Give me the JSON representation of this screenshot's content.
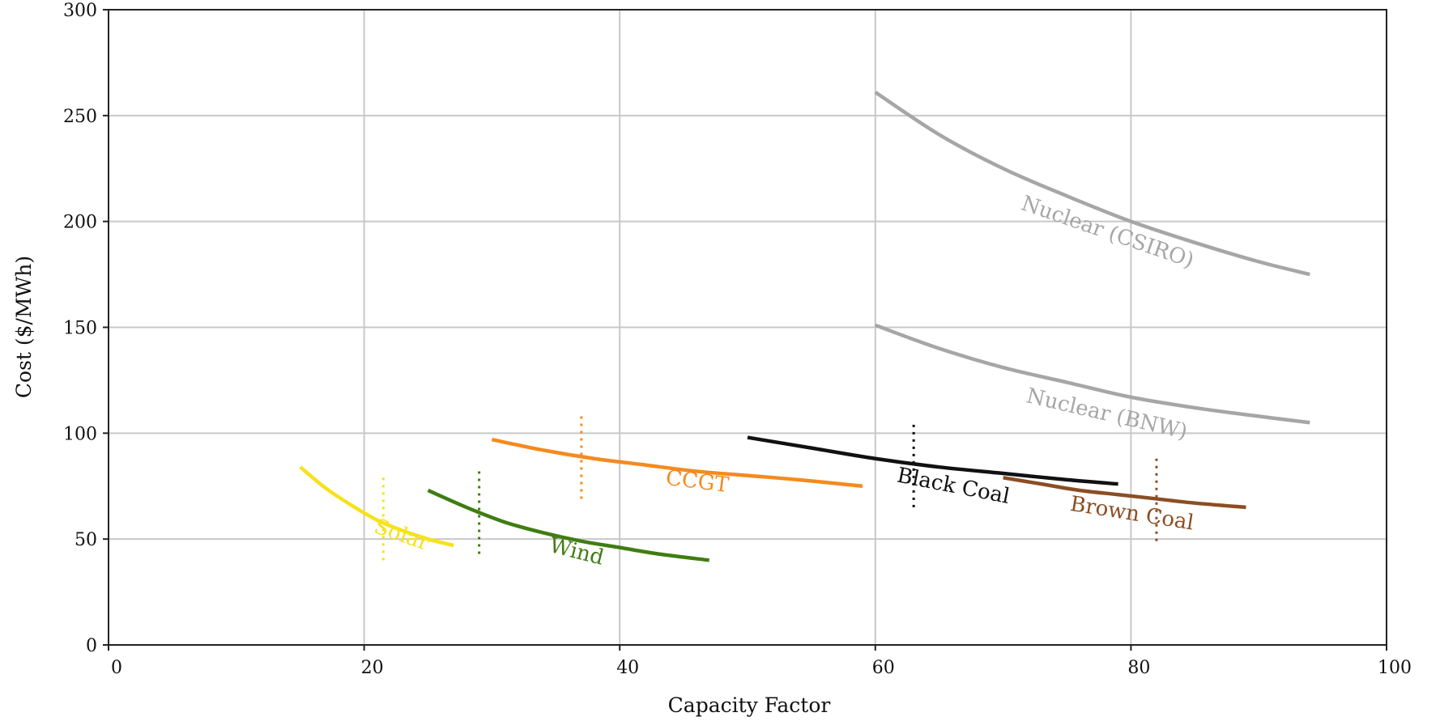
{
  "chart_data": {
    "type": "line",
    "xlabel": "Capacity Factor",
    "ylabel": "Cost ($/MWh)",
    "xlim": [
      0,
      100
    ],
    "ylim": [
      0,
      300
    ],
    "xticks": [
      0,
      20,
      40,
      60,
      80,
      100
    ],
    "yticks": [
      0,
      50,
      100,
      150,
      200,
      250,
      300
    ],
    "grid": true,
    "legend": "inline labels next to curves",
    "series": [
      {
        "name": "Solar",
        "color": "#f7e11a",
        "x": [
          15,
          17,
          19,
          21,
          23,
          25,
          27
        ],
        "y": [
          84,
          74,
          66,
          59,
          54,
          50,
          47
        ],
        "marker_x": 21.5,
        "marker_y_range": [
          40,
          79
        ]
      },
      {
        "name": "Wind",
        "color": "#3f7d12",
        "x": [
          25,
          28,
          31,
          34,
          37,
          40,
          43,
          47
        ],
        "y": [
          73,
          65,
          58,
          53,
          49,
          46,
          43,
          40
        ],
        "marker_x": 29,
        "marker_y_range": [
          43,
          83
        ]
      },
      {
        "name": "CCGT",
        "color": "#f58a1f",
        "x": [
          30,
          34,
          38,
          42,
          46,
          50,
          54,
          59
        ],
        "y": [
          97,
          92,
          88,
          85,
          82,
          80,
          78,
          75
        ],
        "marker_x": 37,
        "marker_y_range": [
          69,
          108
        ]
      },
      {
        "name": "Black Coal",
        "color": "#111111",
        "x": [
          50,
          55,
          60,
          65,
          70,
          75,
          79
        ],
        "y": [
          98,
          93,
          88,
          84,
          81,
          78,
          76
        ],
        "marker_x": 63,
        "marker_y_range": [
          65,
          105
        ]
      },
      {
        "name": "Brown Coal",
        "color": "#8b4e23",
        "x": [
          70,
          73,
          76,
          79,
          82,
          85,
          89
        ],
        "y": [
          79,
          76,
          73,
          71,
          69,
          67,
          65
        ],
        "marker_x": 82,
        "marker_y_range": [
          49,
          88
        ]
      },
      {
        "name": "Nuclear (CSIRO)",
        "color": "#a6a6a6",
        "x": [
          60,
          65,
          70,
          75,
          80,
          85,
          90,
          94
        ],
        "y": [
          261,
          241,
          225,
          212,
          200,
          190,
          181,
          175
        ]
      },
      {
        "name": "Nuclear (BNW)",
        "color": "#a6a6a6",
        "x": [
          60,
          65,
          70,
          75,
          80,
          85,
          90,
          94
        ],
        "y": [
          151,
          140,
          131,
          124,
          117,
          112,
          108,
          105
        ]
      }
    ]
  }
}
